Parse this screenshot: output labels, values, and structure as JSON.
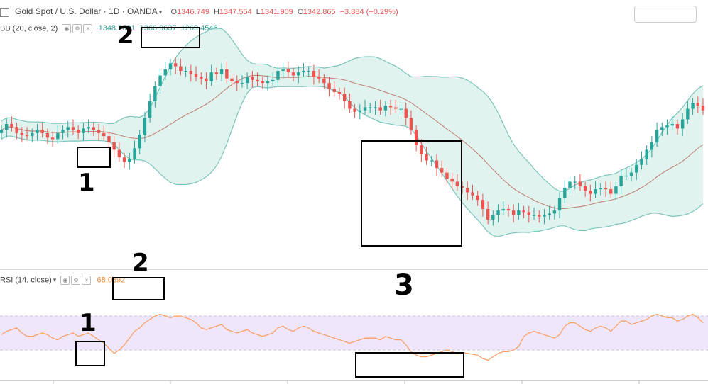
{
  "header": {
    "symbol": "Gold Spot / U.S. Dollar · 1D · OANDA",
    "open_label": "O",
    "open": "1346.749",
    "high_label": "H",
    "high": "1347.554",
    "low_label": "L",
    "low": "1341.909",
    "close_label": "C",
    "close": "1342.865",
    "change": "−3.884 (−0.29%)"
  },
  "bb_legend": {
    "label": "BB (20, close, 2)",
    "v1": "1348.2091",
    "v2": "1366.9637",
    "v3": "1269.4546"
  },
  "rsi_legend": {
    "label": "RSI (14, close)",
    "value": "68.0392"
  },
  "annotations": [
    "1",
    "2",
    "1",
    "2",
    "3"
  ],
  "colors": {
    "up": "#26a69a",
    "down": "#ef5350",
    "band_fill": "#d6efe9",
    "band_line": "#7cc4bb",
    "basis": "#c0857a",
    "rsi_line": "#f7a26a",
    "rsi_zone": "#efe6fb"
  },
  "chart_data": [
    {
      "type": "candlestick",
      "title": "Gold Spot / U.S. Dollar · 1D · OANDA",
      "overlay": "Bollinger Bands (20, close, 2)",
      "close_approx": [
        1318,
        1322,
        1320,
        1316,
        1315,
        1314,
        1316,
        1318,
        1316,
        1313,
        1312,
        1316,
        1318,
        1320,
        1318,
        1316,
        1319,
        1320,
        1318,
        1316,
        1314,
        1310,
        1305,
        1300,
        1297,
        1299,
        1306,
        1315,
        1326,
        1337,
        1347,
        1354,
        1358,
        1362,
        1360,
        1357,
        1357,
        1355,
        1353,
        1352,
        1350,
        1356,
        1355,
        1358,
        1352,
        1350,
        1349,
        1349,
        1353,
        1351,
        1350,
        1349,
        1350,
        1351,
        1357,
        1358,
        1356,
        1354,
        1356,
        1357,
        1357,
        1353,
        1352,
        1349,
        1345,
        1343,
        1342,
        1337,
        1332,
        1330,
        1331,
        1333,
        1333,
        1333,
        1331,
        1334,
        1333,
        1332,
        1332,
        1326,
        1318,
        1308,
        1302,
        1298,
        1298,
        1293,
        1290,
        1286,
        1284,
        1281,
        1280,
        1277,
        1275,
        1272,
        1266,
        1259,
        1262,
        1265,
        1266,
        1265,
        1262,
        1265,
        1264,
        1262,
        1262,
        1261,
        1262,
        1263,
        1265,
        1273,
        1280,
        1284,
        1284,
        1281,
        1278,
        1276,
        1279,
        1280,
        1279,
        1276,
        1281,
        1288,
        1288,
        1290,
        1295,
        1299,
        1305,
        1310,
        1318,
        1320,
        1321,
        1322,
        1319,
        1325,
        1332,
        1336,
        1334,
        1331
      ]
    },
    {
      "type": "line",
      "title": "RSI (14, close)",
      "y": [
        48,
        52,
        54,
        56,
        50,
        46,
        46,
        48,
        50,
        48,
        44,
        42,
        46,
        48,
        50,
        46,
        48,
        50,
        46,
        42,
        38,
        32,
        26,
        30,
        36,
        44,
        52,
        56,
        62,
        66,
        70,
        72,
        70,
        68,
        70,
        70,
        68,
        66,
        62,
        56,
        54,
        56,
        58,
        60,
        54,
        52,
        50,
        52,
        54,
        50,
        48,
        46,
        48,
        50,
        56,
        58,
        54,
        52,
        56,
        58,
        56,
        52,
        50,
        48,
        46,
        44,
        42,
        40,
        38,
        40,
        42,
        44,
        44,
        44,
        42,
        46,
        44,
        42,
        42,
        36,
        28,
        24,
        22,
        22,
        24,
        26,
        28,
        30,
        28,
        26,
        27,
        26,
        25,
        24,
        20,
        18,
        22,
        26,
        28,
        28,
        30,
        34,
        46,
        50,
        52,
        50,
        48,
        46,
        44,
        48,
        58,
        62,
        62,
        58,
        54,
        52,
        56,
        58,
        56,
        52,
        58,
        64,
        64,
        60,
        62,
        64,
        66,
        70,
        72,
        70,
        68,
        68,
        64,
        66,
        70,
        72,
        68,
        62
      ]
    }
  ]
}
